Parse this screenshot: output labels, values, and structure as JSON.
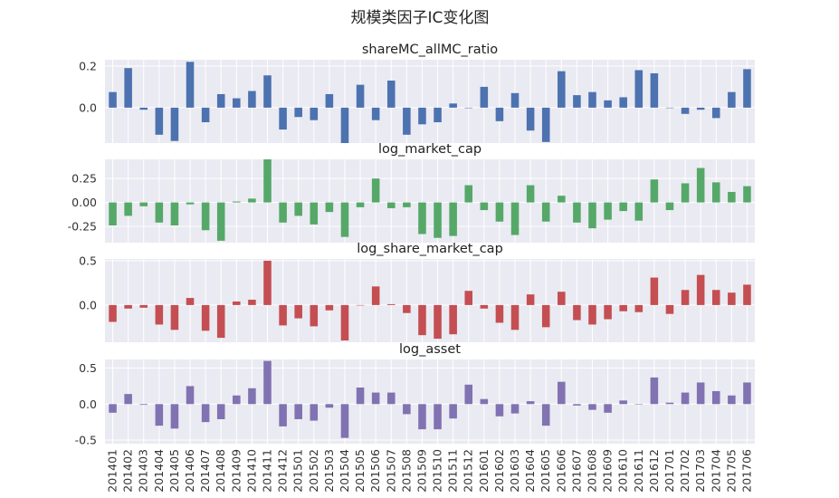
{
  "figure": {
    "title": "规模类因子IC变化图",
    "background": "#ffffff",
    "panel_background": "#EAEAF2",
    "grid_color": "#ffffff"
  },
  "chart_data": [
    {
      "type": "bar",
      "title": "shareMC_allMC_ratio",
      "color": "#4C72B0",
      "ylim": [
        -0.17,
        0.23
      ],
      "yticks": [
        0.0,
        0.2
      ],
      "ytick_labels": [
        "0.0",
        "0.2"
      ],
      "grid": true,
      "values": [
        0.075,
        0.19,
        -0.01,
        -0.13,
        -0.16,
        0.22,
        -0.07,
        0.065,
        0.045,
        0.08,
        0.155,
        -0.105,
        -0.045,
        -0.06,
        0.065,
        -0.17,
        0.11,
        -0.06,
        0.13,
        -0.13,
        -0.08,
        -0.07,
        0.02,
        0.0,
        0.1,
        -0.065,
        0.07,
        -0.11,
        -0.165,
        0.175,
        0.06,
        0.075,
        0.035,
        0.05,
        0.18,
        0.165,
        0.0,
        -0.03,
        -0.01,
        -0.05,
        0.075,
        0.185
      ]
    },
    {
      "type": "bar",
      "title": "log_market_cap",
      "color": "#55A868",
      "ylim": [
        -0.42,
        0.45
      ],
      "yticks": [
        -0.25,
        0.0,
        0.25
      ],
      "ytick_labels": [
        "-0.25",
        "0.00",
        "0.25"
      ],
      "grid": true,
      "values": [
        -0.24,
        -0.14,
        -0.04,
        -0.21,
        -0.24,
        -0.02,
        -0.29,
        -0.4,
        0.01,
        0.04,
        0.45,
        -0.21,
        -0.14,
        -0.23,
        -0.1,
        -0.36,
        -0.05,
        0.25,
        -0.06,
        -0.05,
        -0.33,
        -0.37,
        -0.35,
        0.18,
        -0.08,
        -0.2,
        -0.34,
        0.18,
        -0.2,
        0.07,
        -0.21,
        -0.27,
        -0.18,
        -0.09,
        -0.19,
        0.24,
        -0.08,
        0.2,
        0.36,
        0.21,
        0.11,
        0.17
      ]
    },
    {
      "type": "bar",
      "title": "log_share_market_cap",
      "color": "#C44E52",
      "ylim": [
        -0.42,
        0.52
      ],
      "yticks": [
        0.0,
        0.5
      ],
      "ytick_labels": [
        "0.0",
        "0.5"
      ],
      "grid": true,
      "values": [
        -0.19,
        -0.04,
        -0.03,
        -0.22,
        -0.28,
        0.08,
        -0.29,
        -0.37,
        0.04,
        0.06,
        0.5,
        -0.23,
        -0.15,
        -0.24,
        -0.06,
        -0.4,
        0.0,
        0.21,
        0.01,
        -0.09,
        -0.34,
        -0.38,
        -0.33,
        0.16,
        -0.04,
        -0.2,
        -0.28,
        0.12,
        -0.25,
        0.15,
        -0.17,
        -0.22,
        -0.16,
        -0.07,
        -0.08,
        0.31,
        -0.1,
        0.17,
        0.34,
        0.17,
        0.14,
        0.23
      ]
    },
    {
      "type": "bar",
      "title": "log_asset",
      "color": "#8172B2",
      "ylim": [
        -0.55,
        0.62
      ],
      "yticks": [
        -0.5,
        0.0,
        0.5
      ],
      "ytick_labels": [
        "-0.5",
        "0.0",
        "0.5"
      ],
      "grid": true,
      "values": [
        -0.12,
        0.14,
        -0.01,
        -0.3,
        -0.34,
        0.25,
        -0.25,
        -0.21,
        0.12,
        0.22,
        0.6,
        -0.31,
        -0.21,
        -0.23,
        -0.05,
        -0.47,
        0.23,
        0.16,
        0.16,
        -0.14,
        -0.35,
        -0.35,
        -0.2,
        0.27,
        0.07,
        -0.17,
        -0.13,
        0.04,
        -0.3,
        0.31,
        -0.02,
        -0.08,
        -0.12,
        0.05,
        0.0,
        0.37,
        0.02,
        0.16,
        0.3,
        0.18,
        0.12,
        0.3
      ]
    }
  ],
  "x_categories": [
    "201401",
    "201402",
    "201403",
    "201404",
    "201405",
    "201406",
    "201407",
    "201408",
    "201409",
    "201410",
    "201411",
    "201412",
    "201501",
    "201502",
    "201503",
    "201504",
    "201505",
    "201506",
    "201507",
    "201508",
    "201509",
    "201510",
    "201511",
    "201512",
    "201601",
    "201602",
    "201603",
    "201604",
    "201605",
    "201606",
    "201607",
    "201608",
    "201609",
    "201610",
    "201611",
    "201612",
    "201701",
    "201702",
    "201703",
    "201704",
    "201705",
    "201706"
  ]
}
